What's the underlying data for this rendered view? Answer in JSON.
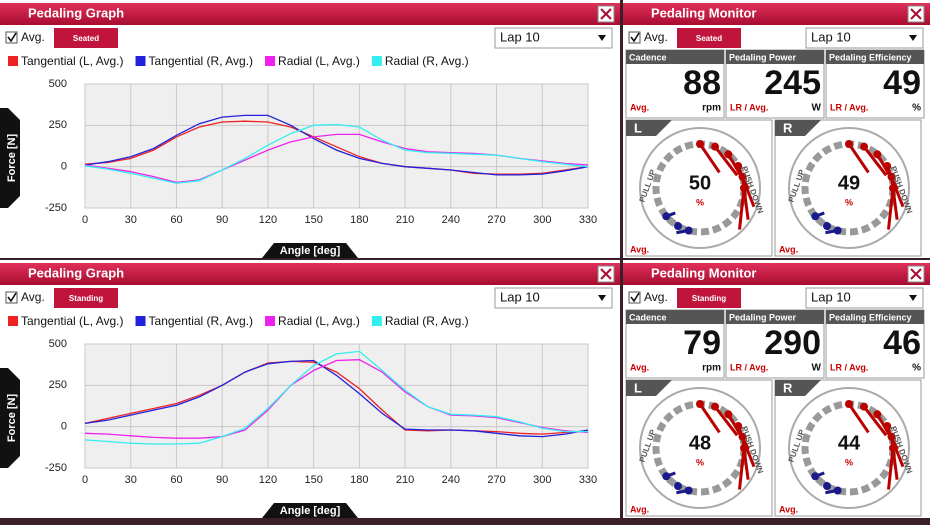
{
  "panels": [
    {
      "title": "Pedaling Graph",
      "avg": "Avg.",
      "mode": "Seated",
      "lap": "Lap 10",
      "chart": {
        "type": "line",
        "ylabel": "Force [N]",
        "xlabel": "Angle [deg]",
        "x": [
          0,
          15,
          30,
          45,
          60,
          75,
          90,
          105,
          120,
          135,
          150,
          165,
          180,
          195,
          210,
          225,
          240,
          255,
          270,
          285,
          300,
          315,
          330
        ],
        "xlim": [
          0,
          330
        ],
        "xticks": [
          0,
          30,
          60,
          90,
          120,
          150,
          180,
          210,
          240,
          270,
          300,
          330
        ],
        "ylim": [
          -250,
          500
        ],
        "yticks": [
          -250,
          0,
          250,
          500
        ],
        "grid": true,
        "series": [
          {
            "name": "Tangential (L, Avg.)",
            "color": "#ee2222",
            "values": [
              15,
              25,
              50,
              100,
              180,
              240,
              270,
              275,
              270,
              240,
              180,
              120,
              60,
              20,
              0,
              -10,
              -20,
              -40,
              -45,
              -45,
              -40,
              -20,
              0
            ]
          },
          {
            "name": "Tangential (R, Avg.)",
            "color": "#2222dd",
            "values": [
              10,
              30,
              60,
              110,
              190,
              260,
              300,
              310,
              310,
              250,
              170,
              100,
              50,
              20,
              0,
              -10,
              -20,
              -35,
              -50,
              -50,
              -45,
              -25,
              0
            ]
          },
          {
            "name": "Radial (L, Avg.)",
            "color": "#ee22ee",
            "values": [
              10,
              -10,
              -30,
              -60,
              -95,
              -80,
              -20,
              40,
              100,
              150,
              180,
              195,
              195,
              150,
              110,
              90,
              85,
              80,
              70,
              50,
              35,
              20,
              10
            ]
          },
          {
            "name": "Radial (R, Avg.)",
            "color": "#33eeee",
            "values": [
              5,
              -15,
              -40,
              -70,
              -100,
              -85,
              -20,
              50,
              130,
              200,
              250,
              255,
              240,
              160,
              100,
              85,
              80,
              75,
              70,
              50,
              30,
              15,
              0
            ]
          }
        ]
      }
    },
    {
      "title": "Pedaling Monitor",
      "avg": "Avg.",
      "mode": "Seated",
      "lap": "Lap 10",
      "metrics": [
        {
          "label": "Cadence",
          "value": 88,
          "avg": "Avg.",
          "unit": "rpm"
        },
        {
          "label": "Pedaling Power",
          "value": 245,
          "avg": "LR / Avg.",
          "unit": "W"
        },
        {
          "label": "Pedaling Efficiency",
          "value": 49,
          "avg": "LR / Avg.",
          "unit": "%"
        }
      ],
      "gauges": [
        {
          "side": "L",
          "value": 50,
          "unit": "%",
          "pull": "PULL UP",
          "push": "PUSH DOWN",
          "avg": "Avg."
        },
        {
          "side": "R",
          "value": 49,
          "unit": "%",
          "pull": "PULL UP",
          "push": "PUSH DOWN",
          "avg": "Avg."
        }
      ]
    },
    {
      "title": "Pedaling Graph",
      "avg": "Avg.",
      "mode": "Standing",
      "lap": "Lap 10",
      "chart": {
        "type": "line",
        "ylabel": "Force [N]",
        "xlabel": "Angle [deg]",
        "x": [
          0,
          15,
          30,
          45,
          60,
          75,
          90,
          105,
          120,
          135,
          150,
          165,
          180,
          195,
          210,
          225,
          240,
          255,
          270,
          285,
          300,
          315,
          330
        ],
        "xlim": [
          0,
          330
        ],
        "xticks": [
          0,
          30,
          60,
          90,
          120,
          150,
          180,
          210,
          240,
          270,
          300,
          330
        ],
        "ylim": [
          -250,
          500
        ],
        "yticks": [
          -250,
          0,
          250,
          500
        ],
        "grid": true,
        "series": [
          {
            "name": "Tangential (L, Avg.)",
            "color": "#ee2222",
            "values": [
              20,
              50,
              80,
              110,
              140,
              190,
              250,
              330,
              385,
              395,
              390,
              330,
              230,
              100,
              -20,
              -25,
              -20,
              -25,
              -30,
              -40,
              -45,
              -35,
              -25
            ]
          },
          {
            "name": "Tangential (R, Avg.)",
            "color": "#2222dd",
            "values": [
              20,
              40,
              70,
              100,
              130,
              180,
              250,
              330,
              380,
              395,
              400,
              310,
              200,
              80,
              -15,
              -20,
              -20,
              -25,
              -40,
              -55,
              -60,
              -45,
              -20
            ]
          },
          {
            "name": "Radial (L, Avg.)",
            "color": "#ee22ee",
            "values": [
              -40,
              -45,
              -55,
              -65,
              -70,
              -70,
              -60,
              -20,
              100,
              250,
              340,
              400,
              405,
              330,
              210,
              120,
              70,
              65,
              55,
              25,
              -5,
              -25,
              -35
            ]
          },
          {
            "name": "Radial (R, Avg.)",
            "color": "#33eeee",
            "values": [
              -80,
              -90,
              -100,
              -105,
              -105,
              -100,
              -60,
              -10,
              110,
              250,
              370,
              440,
              455,
              340,
              220,
              120,
              75,
              70,
              60,
              30,
              -10,
              -30,
              -30
            ]
          }
        ]
      }
    },
    {
      "title": "Pedaling Monitor",
      "avg": "Avg.",
      "mode": "Standing",
      "lap": "Lap 10",
      "metrics": [
        {
          "label": "Cadence",
          "value": 79,
          "avg": "Avg.",
          "unit": "rpm"
        },
        {
          "label": "Pedaling Power",
          "value": 290,
          "avg": "LR / Avg.",
          "unit": "W"
        },
        {
          "label": "Pedaling Efficiency",
          "value": 46,
          "avg": "LR / Avg.",
          "unit": "%"
        }
      ],
      "gauges": [
        {
          "side": "L",
          "value": 48,
          "unit": "%",
          "pull": "PULL UP",
          "push": "PUSH DOWN",
          "avg": "Avg."
        },
        {
          "side": "R",
          "value": 44,
          "unit": "%",
          "pull": "PULL UP",
          "push": "PUSH DOWN",
          "avg": "Avg."
        }
      ]
    }
  ]
}
